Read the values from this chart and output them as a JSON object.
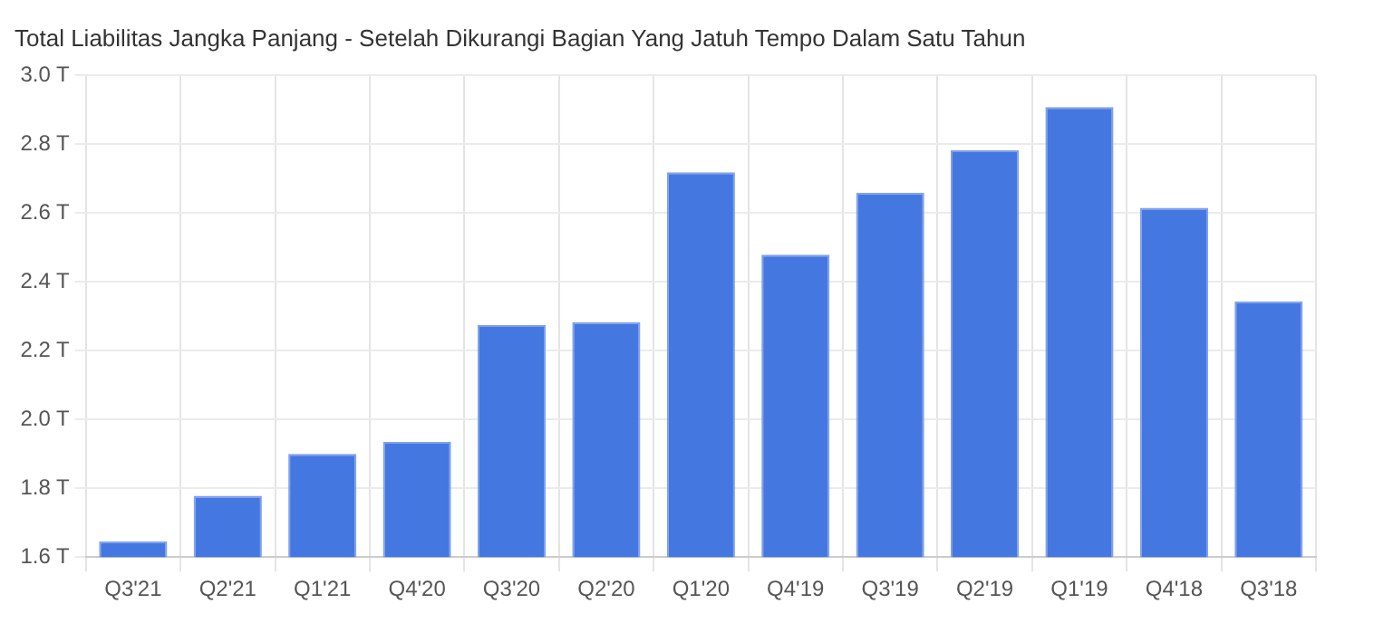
{
  "chart_data": {
    "type": "bar",
    "title": "Total Liabilitas Jangka Panjang - Setelah Dikurangi Bagian Yang Jatuh Tempo Dalam Satu Tahun",
    "categories": [
      "Q3'21",
      "Q2'21",
      "Q1'21",
      "Q4'20",
      "Q3'20",
      "Q2'20",
      "Q1'20",
      "Q4'19",
      "Q3'19",
      "Q2'19",
      "Q1'19",
      "Q4'18",
      "Q3'18"
    ],
    "values": [
      1.646,
      1.778,
      1.9,
      1.935,
      2.274,
      2.283,
      2.718,
      2.479,
      2.659,
      2.782,
      2.908,
      2.615,
      2.343
    ],
    "color": "#4477e0",
    "ylim": [
      1.6,
      3.0
    ],
    "yticks": [
      {
        "value": 1.6,
        "label": "1.6 T"
      },
      {
        "value": 1.8,
        "label": "1.8 T"
      },
      {
        "value": 2.0,
        "label": "2.0 T"
      },
      {
        "value": 2.2,
        "label": "2.2 T"
      },
      {
        "value": 2.4,
        "label": "2.4 T"
      },
      {
        "value": 2.6,
        "label": "2.6 T"
      },
      {
        "value": 2.8,
        "label": "2.8 T"
      },
      {
        "value": 3.0,
        "label": "3.0 T"
      }
    ],
    "grid": true
  }
}
